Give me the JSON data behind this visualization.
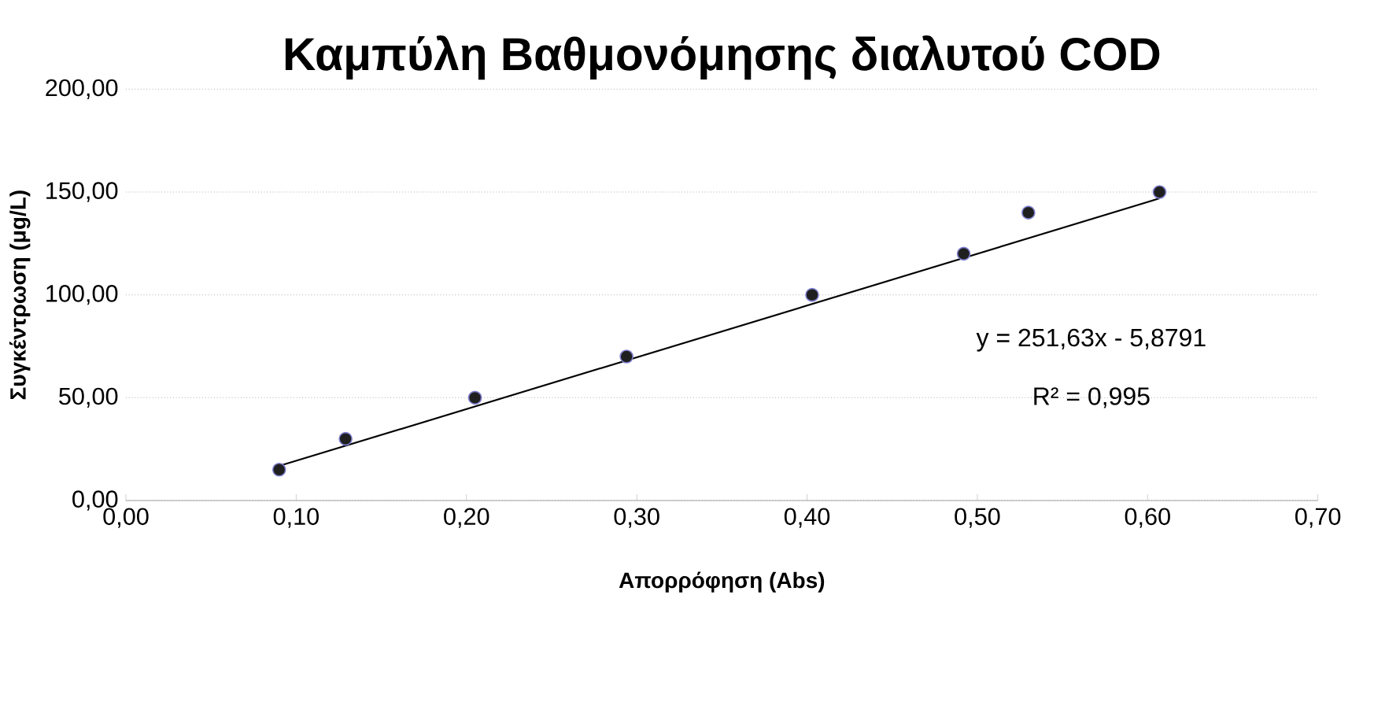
{
  "chart_data": {
    "type": "scatter",
    "title": "Καμπύλη Βαθμονόμησης διαλυτού COD",
    "xlabel": "Απορρόφηση (Abs)",
    "ylabel": "Συγκέντρωση (μg/L)",
    "xlim": [
      0,
      0.7
    ],
    "ylim": [
      0,
      200
    ],
    "xticks": [
      {
        "value": 0,
        "label": "0,00"
      },
      {
        "value": 0.1,
        "label": "0,10"
      },
      {
        "value": 0.2,
        "label": "0,20"
      },
      {
        "value": 0.3,
        "label": "0,30"
      },
      {
        "value": 0.4,
        "label": "0,40"
      },
      {
        "value": 0.5,
        "label": "0,50"
      },
      {
        "value": 0.6,
        "label": "0,60"
      },
      {
        "value": 0.7,
        "label": "0,70"
      }
    ],
    "yticks": [
      {
        "value": 0,
        "label": "0,00"
      },
      {
        "value": 50,
        "label": "50,00"
      },
      {
        "value": 100,
        "label": "100,00"
      },
      {
        "value": 150,
        "label": "150,00"
      },
      {
        "value": 200,
        "label": "200,00"
      }
    ],
    "grid": "y",
    "series": [
      {
        "marker": "circle",
        "color": "#1f1f1f",
        "x": [
          0.09,
          0.129,
          0.205,
          0.294,
          0.403,
          0.492,
          0.53,
          0.607
        ],
        "values": [
          15,
          30,
          50,
          70,
          100,
          120,
          140,
          150
        ]
      },
      {
        "type": "line",
        "marker": "none",
        "color": "#000000",
        "x": [
          0.09,
          0.607
        ],
        "values": [
          16.8,
          146.9
        ]
      }
    ],
    "annotations": [
      "y = 251,63x - 5,8791",
      "R² = 0,995"
    ]
  }
}
